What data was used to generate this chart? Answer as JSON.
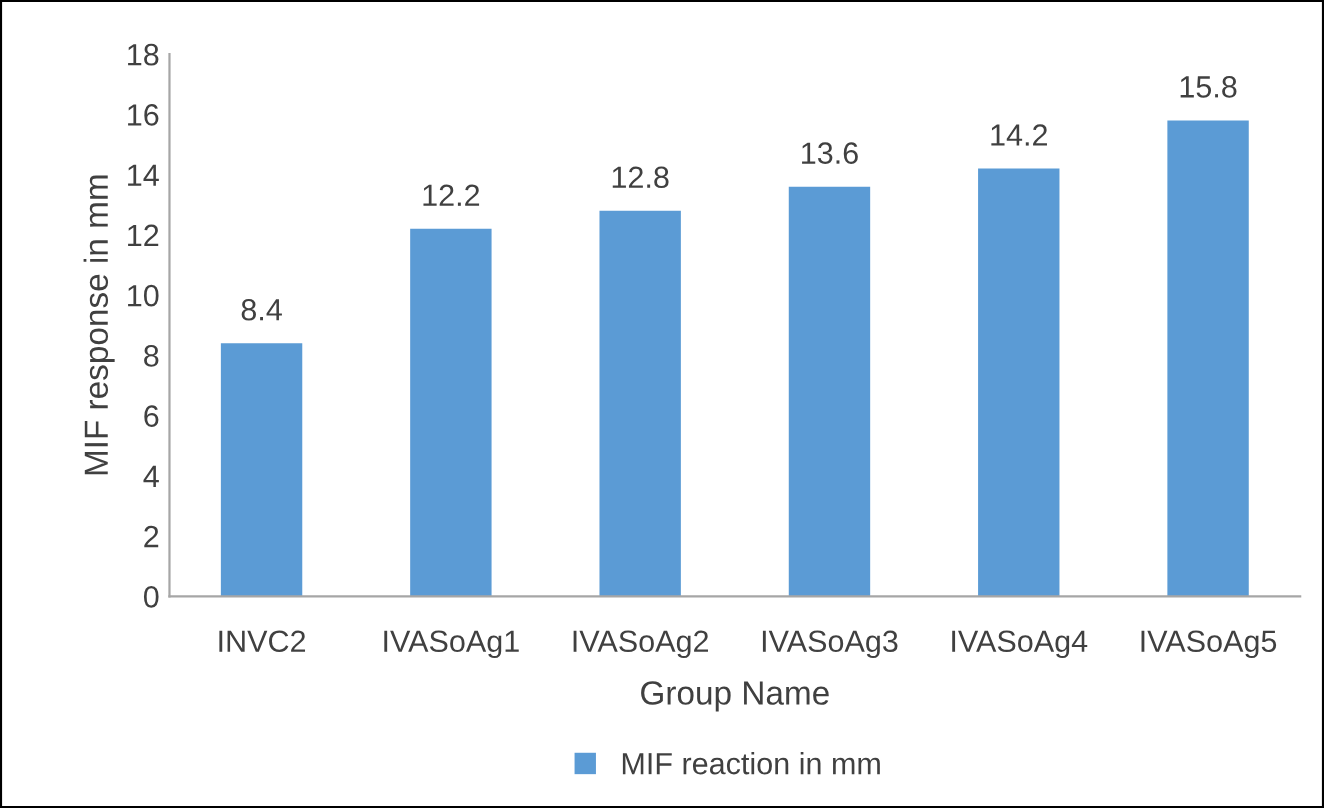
{
  "chart_data": {
    "type": "bar",
    "xlabel": "Group Name",
    "ylabel": "MIF response in mm",
    "categories": [
      "INVC2",
      "IVASoAg1",
      "IVASoAg2",
      "IVASoAg3",
      "IVASoAg4",
      "IVASoAg5"
    ],
    "series": [
      {
        "name": "MIF reaction in mm",
        "color": "#5b9bd5",
        "values": [
          8.4,
          12.2,
          12.8,
          13.6,
          14.2,
          15.8
        ]
      }
    ],
    "ylim": [
      0,
      18
    ],
    "yticks": [
      0,
      2,
      4,
      6,
      8,
      10,
      12,
      14,
      16,
      18
    ],
    "data_labels": true,
    "legend": "bottom",
    "grid": false
  }
}
